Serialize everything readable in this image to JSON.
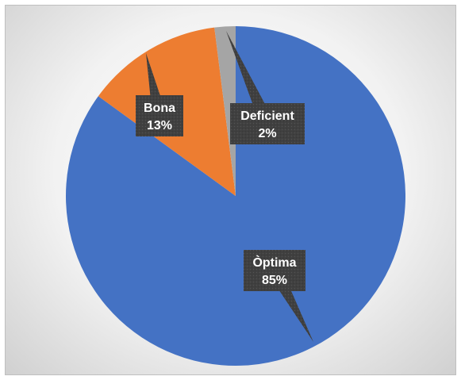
{
  "chart_data": {
    "type": "pie",
    "slices": [
      {
        "label": "Òptima",
        "value": 85,
        "value_label": "85%",
        "color": "#4472C4"
      },
      {
        "label": "Bona",
        "value": 13,
        "value_label": "13%",
        "color": "#ED7D31"
      },
      {
        "label": "Deficient",
        "value": 2,
        "value_label": "2%",
        "color": "#A5A5A5"
      }
    ],
    "start_angle_deg": 0,
    "direction": "clockwise",
    "callout_color": "#404040",
    "title": "",
    "legend": "none"
  }
}
